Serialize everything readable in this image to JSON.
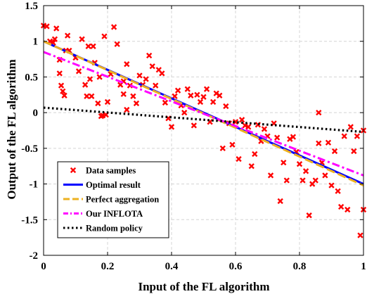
{
  "chart_data": {
    "type": "scatter",
    "xlabel": "Input of the FL algorithm",
    "ylabel": "Output of the FL algorithm",
    "xlim": [
      0,
      1
    ],
    "ylim": [
      -2,
      1.5
    ],
    "xticks": [
      0,
      0.2,
      0.4,
      0.6,
      0.8,
      1
    ],
    "xtick_labels": [
      "0",
      "0.2",
      "0.4",
      "0.6",
      "0.8",
      "1"
    ],
    "yticks": [
      -2,
      -1.5,
      -1,
      -0.5,
      0,
      0.5,
      1,
      1.5
    ],
    "ytick_labels": [
      "-2",
      "-1.5",
      "-1",
      "-0.5",
      "0",
      "0.5",
      "1",
      "1.5"
    ],
    "grid": true,
    "legend_position": "bottom-left",
    "series": [
      {
        "name": "Data samples",
        "kind": "scatter",
        "color": "#ff0000",
        "marker": "x",
        "points": [
          [
            0.0,
            1.22
          ],
          [
            0.01,
            1.21
          ],
          [
            0.02,
            1.0
          ],
          [
            0.03,
            0.98
          ],
          [
            0.035,
            1.03
          ],
          [
            0.04,
            1.18
          ],
          [
            0.05,
            0.55
          ],
          [
            0.05,
            0.74
          ],
          [
            0.055,
            0.38
          ],
          [
            0.06,
            0.3
          ],
          [
            0.065,
            0.24
          ],
          [
            0.07,
            0.87
          ],
          [
            0.075,
            1.08
          ],
          [
            0.08,
            0.87
          ],
          [
            0.1,
            0.77
          ],
          [
            0.11,
            0.58
          ],
          [
            0.12,
            1.03
          ],
          [
            0.13,
            0.39
          ],
          [
            0.135,
            0.23
          ],
          [
            0.14,
            0.93
          ],
          [
            0.145,
            0.47
          ],
          [
            0.15,
            0.23
          ],
          [
            0.155,
            0.93
          ],
          [
            0.16,
            0.7
          ],
          [
            0.17,
            0.13
          ],
          [
            0.175,
            0.5
          ],
          [
            0.18,
            -0.05
          ],
          [
            0.185,
            -0.04
          ],
          [
            0.19,
            1.07
          ],
          [
            0.195,
            -0.03
          ],
          [
            0.2,
            0.15
          ],
          [
            0.21,
            0.54
          ],
          [
            0.22,
            1.2
          ],
          [
            0.23,
            0.96
          ],
          [
            0.24,
            0.39
          ],
          [
            0.25,
            0.44
          ],
          [
            0.25,
            0.26
          ],
          [
            0.26,
            0.04
          ],
          [
            0.26,
            0.68
          ],
          [
            0.27,
            0.38
          ],
          [
            0.28,
            0.23
          ],
          [
            0.29,
            0.13
          ],
          [
            0.3,
            0.52
          ],
          [
            0.31,
            0.39
          ],
          [
            0.32,
            0.47
          ],
          [
            0.33,
            0.8
          ],
          [
            0.34,
            0.65
          ],
          [
            0.35,
            0.38
          ],
          [
            0.36,
            0.6
          ],
          [
            0.37,
            0.55
          ],
          [
            0.38,
            0.14
          ],
          [
            0.39,
            -0.08
          ],
          [
            0.4,
            -0.2
          ],
          [
            0.41,
            0.23
          ],
          [
            0.42,
            0.31
          ],
          [
            0.43,
            0.1
          ],
          [
            0.44,
            0.0
          ],
          [
            0.45,
            0.33
          ],
          [
            0.46,
            0.24
          ],
          [
            0.47,
            -0.18
          ],
          [
            0.48,
            0.25
          ],
          [
            0.49,
            0.15
          ],
          [
            0.5,
            0.22
          ],
          [
            0.51,
            0.33
          ],
          [
            0.52,
            -0.13
          ],
          [
            0.53,
            0.15
          ],
          [
            0.54,
            0.27
          ],
          [
            0.55,
            0.24
          ],
          [
            0.56,
            -0.5
          ],
          [
            0.57,
            0.09
          ],
          [
            0.58,
            -0.15
          ],
          [
            0.59,
            -0.45
          ],
          [
            0.6,
            -0.13
          ],
          [
            0.61,
            -0.65
          ],
          [
            0.62,
            -0.1
          ],
          [
            0.63,
            -0.18
          ],
          [
            0.64,
            -0.2
          ],
          [
            0.65,
            -0.75
          ],
          [
            0.66,
            -0.58
          ],
          [
            0.67,
            -0.17
          ],
          [
            0.68,
            -0.4
          ],
          [
            0.69,
            -0.23
          ],
          [
            0.7,
            -0.33
          ],
          [
            0.71,
            -0.88
          ],
          [
            0.72,
            -0.15
          ],
          [
            0.73,
            -0.35
          ],
          [
            0.74,
            -1.24
          ],
          [
            0.75,
            -0.7
          ],
          [
            0.76,
            -0.95
          ],
          [
            0.77,
            -0.37
          ],
          [
            0.78,
            -0.34
          ],
          [
            0.79,
            -0.55
          ],
          [
            0.8,
            -0.72
          ],
          [
            0.81,
            -0.95
          ],
          [
            0.82,
            -0.82
          ],
          [
            0.83,
            -1.44
          ],
          [
            0.84,
            -1.0
          ],
          [
            0.85,
            -0.95
          ],
          [
            0.86,
            -0.43
          ],
          [
            0.86,
            0.0
          ],
          [
            0.87,
            -0.7
          ],
          [
            0.88,
            -0.88
          ],
          [
            0.89,
            -0.42
          ],
          [
            0.9,
            -1.02
          ],
          [
            0.91,
            -0.54
          ],
          [
            0.92,
            -1.1
          ],
          [
            0.93,
            -1.32
          ],
          [
            0.94,
            -0.33
          ],
          [
            0.95,
            -1.36
          ],
          [
            0.96,
            -0.2
          ],
          [
            0.97,
            -0.54
          ],
          [
            0.98,
            -0.33
          ],
          [
            0.99,
            -1.72
          ],
          [
            1.0,
            -0.25
          ],
          [
            1.0,
            -1.36
          ]
        ]
      },
      {
        "name": "Optimal result",
        "kind": "line",
        "color": "#0000ff",
        "dash": "solid",
        "x": [
          0,
          1
        ],
        "y": [
          1.0,
          -1.0
        ]
      },
      {
        "name": "Perfect aggregation",
        "kind": "line",
        "color": "#edb120",
        "dash": "dashed",
        "x": [
          0,
          1
        ],
        "y": [
          1.0,
          -1.02
        ]
      },
      {
        "name": "Our INFLOTA",
        "kind": "line",
        "color": "#ff00ff",
        "dash": "dashdot",
        "x": [
          0,
          1
        ],
        "y": [
          0.85,
          -0.88
        ]
      },
      {
        "name": "Random policy",
        "kind": "line",
        "color": "#000000",
        "dash": "dotted",
        "x": [
          0,
          1
        ],
        "y": [
          0.07,
          -0.27
        ]
      }
    ]
  }
}
